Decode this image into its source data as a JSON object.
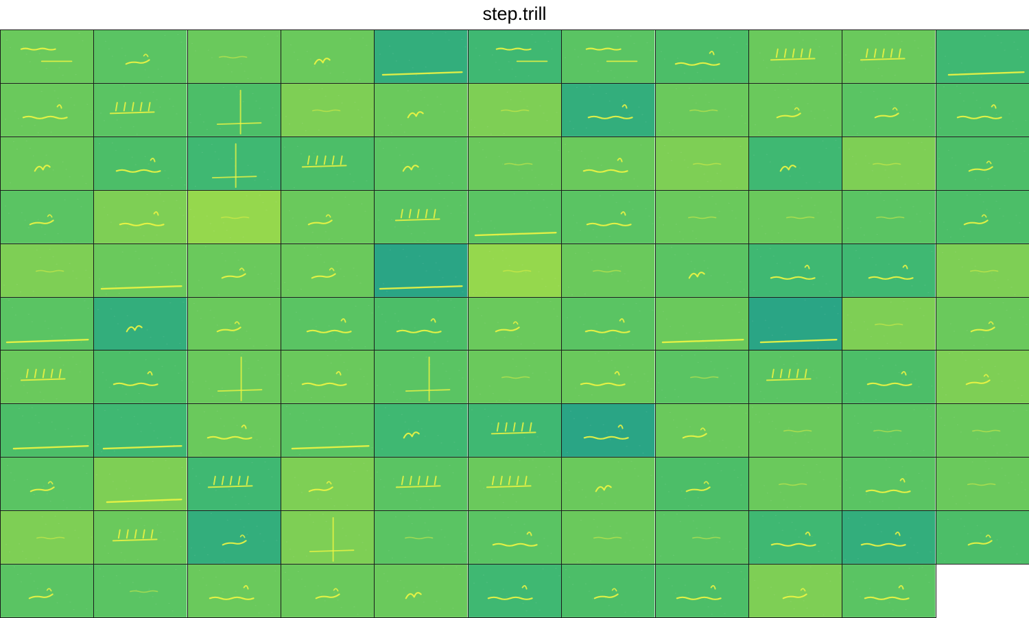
{
  "title": "step.trill",
  "grid": {
    "columns": 11,
    "rows": 11,
    "tile_count": 120
  },
  "colors": {
    "background": "#ffffff",
    "border": "#1a1a1a",
    "signal": "#f0f542",
    "palette": [
      "#2aa585",
      "#33ae7c",
      "#3fb872",
      "#4cbe68",
      "#5ac463",
      "#6ac95c",
      "#7ecf55",
      "#95d84d"
    ]
  },
  "tiles": [
    {
      "tone": 5,
      "motif": "upper"
    },
    {
      "tone": 4,
      "motif": "short"
    },
    {
      "tone": 5,
      "motif": "faint"
    },
    {
      "tone": 5,
      "motif": "hook"
    },
    {
      "tone": 1,
      "motif": "long"
    },
    {
      "tone": 2,
      "motif": "upper"
    },
    {
      "tone": 4,
      "motif": "upper"
    },
    {
      "tone": 3,
      "motif": "wave"
    },
    {
      "tone": 5,
      "motif": "comb"
    },
    {
      "tone": 5,
      "motif": "comb"
    },
    {
      "tone": 2,
      "motif": "long"
    },
    {
      "tone": 5,
      "motif": "wave"
    },
    {
      "tone": 4,
      "motif": "comb"
    },
    {
      "tone": 3,
      "motif": "vertical"
    },
    {
      "tone": 6,
      "motif": "faint"
    },
    {
      "tone": 5,
      "motif": "hook"
    },
    {
      "tone": 6,
      "motif": "faint"
    },
    {
      "tone": 1,
      "motif": "wave"
    },
    {
      "tone": 5,
      "motif": "faint"
    },
    {
      "tone": 5,
      "motif": "short"
    },
    {
      "tone": 4,
      "motif": "short"
    },
    {
      "tone": 3,
      "motif": "wave"
    },
    {
      "tone": 5,
      "motif": "hook"
    },
    {
      "tone": 3,
      "motif": "wave"
    },
    {
      "tone": 2,
      "motif": "vertical"
    },
    {
      "tone": 3,
      "motif": "comb"
    },
    {
      "tone": 4,
      "motif": "hook"
    },
    {
      "tone": 5,
      "motif": "faint"
    },
    {
      "tone": 5,
      "motif": "wave"
    },
    {
      "tone": 6,
      "motif": "faint"
    },
    {
      "tone": 2,
      "motif": "hook"
    },
    {
      "tone": 6,
      "motif": "faint"
    },
    {
      "tone": 3,
      "motif": "short"
    },
    {
      "tone": 4,
      "motif": "short"
    },
    {
      "tone": 6,
      "motif": "wave"
    },
    {
      "tone": 7,
      "motif": "faint"
    },
    {
      "tone": 5,
      "motif": "short"
    },
    {
      "tone": 4,
      "motif": "comb"
    },
    {
      "tone": 4,
      "motif": "long"
    },
    {
      "tone": 4,
      "motif": "wave"
    },
    {
      "tone": 5,
      "motif": "faint"
    },
    {
      "tone": 5,
      "motif": "faint"
    },
    {
      "tone": 4,
      "motif": "faint"
    },
    {
      "tone": 3,
      "motif": "short"
    },
    {
      "tone": 6,
      "motif": "faint"
    },
    {
      "tone": 5,
      "motif": "long"
    },
    {
      "tone": 5,
      "motif": "short"
    },
    {
      "tone": 5,
      "motif": "short"
    },
    {
      "tone": 0,
      "motif": "long"
    },
    {
      "tone": 7,
      "motif": "faint"
    },
    {
      "tone": 5,
      "motif": "faint"
    },
    {
      "tone": 4,
      "motif": "hook"
    },
    {
      "tone": 2,
      "motif": "wave"
    },
    {
      "tone": 2,
      "motif": "wave"
    },
    {
      "tone": 6,
      "motif": "faint"
    },
    {
      "tone": 4,
      "motif": "long"
    },
    {
      "tone": 1,
      "motif": "hook"
    },
    {
      "tone": 5,
      "motif": "short"
    },
    {
      "tone": 4,
      "motif": "wave"
    },
    {
      "tone": 3,
      "motif": "wave"
    },
    {
      "tone": 5,
      "motif": "short"
    },
    {
      "tone": 4,
      "motif": "wave"
    },
    {
      "tone": 5,
      "motif": "long"
    },
    {
      "tone": 0,
      "motif": "long"
    },
    {
      "tone": 6,
      "motif": "faint"
    },
    {
      "tone": 5,
      "motif": "short"
    },
    {
      "tone": 5,
      "motif": "comb"
    },
    {
      "tone": 3,
      "motif": "wave"
    },
    {
      "tone": 5,
      "motif": "vertical"
    },
    {
      "tone": 5,
      "motif": "wave"
    },
    {
      "tone": 4,
      "motif": "vertical"
    },
    {
      "tone": 5,
      "motif": "faint"
    },
    {
      "tone": 5,
      "motif": "wave"
    },
    {
      "tone": 4,
      "motif": "faint"
    },
    {
      "tone": 4,
      "motif": "comb"
    },
    {
      "tone": 3,
      "motif": "wave"
    },
    {
      "tone": 6,
      "motif": "short"
    },
    {
      "tone": 3,
      "motif": "long"
    },
    {
      "tone": 2,
      "motif": "long"
    },
    {
      "tone": 5,
      "motif": "wave"
    },
    {
      "tone": 4,
      "motif": "long"
    },
    {
      "tone": 2,
      "motif": "hook"
    },
    {
      "tone": 2,
      "motif": "comb"
    },
    {
      "tone": 0,
      "motif": "wave"
    },
    {
      "tone": 5,
      "motif": "short"
    },
    {
      "tone": 5,
      "motif": "faint"
    },
    {
      "tone": 4,
      "motif": "faint"
    },
    {
      "tone": 5,
      "motif": "faint"
    },
    {
      "tone": 4,
      "motif": "short"
    },
    {
      "tone": 6,
      "motif": "long"
    },
    {
      "tone": 2,
      "motif": "comb"
    },
    {
      "tone": 6,
      "motif": "short"
    },
    {
      "tone": 4,
      "motif": "comb"
    },
    {
      "tone": 5,
      "motif": "comb"
    },
    {
      "tone": 5,
      "motif": "hook"
    },
    {
      "tone": 3,
      "motif": "short"
    },
    {
      "tone": 5,
      "motif": "faint"
    },
    {
      "tone": 4,
      "motif": "wave"
    },
    {
      "tone": 5,
      "motif": "faint"
    },
    {
      "tone": 6,
      "motif": "faint"
    },
    {
      "tone": 5,
      "motif": "comb"
    },
    {
      "tone": 1,
      "motif": "short"
    },
    {
      "tone": 6,
      "motif": "vertical"
    },
    {
      "tone": 4,
      "motif": "faint"
    },
    {
      "tone": 4,
      "motif": "wave"
    },
    {
      "tone": 5,
      "motif": "faint"
    },
    {
      "tone": 4,
      "motif": "faint"
    },
    {
      "tone": 2,
      "motif": "wave"
    },
    {
      "tone": 1,
      "motif": "wave"
    },
    {
      "tone": 3,
      "motif": "short"
    },
    {
      "tone": 4,
      "motif": "short"
    },
    {
      "tone": 4,
      "motif": "faint"
    },
    {
      "tone": 5,
      "motif": "wave"
    },
    {
      "tone": 5,
      "motif": "short"
    },
    {
      "tone": 5,
      "motif": "hook"
    },
    {
      "tone": 2,
      "motif": "wave"
    },
    {
      "tone": 3,
      "motif": "short"
    },
    {
      "tone": 3,
      "motif": "wave"
    },
    {
      "tone": 6,
      "motif": "short"
    },
    {
      "tone": 4,
      "motif": "wave"
    }
  ]
}
